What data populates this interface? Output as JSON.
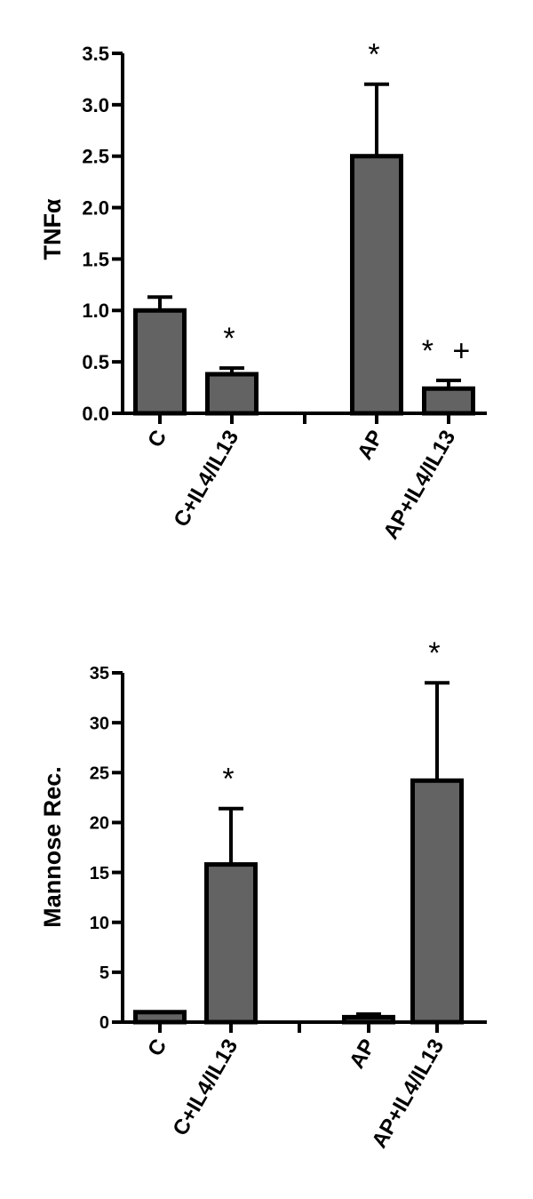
{
  "chart_data": [
    {
      "type": "bar",
      "categories": [
        "C",
        "C+IL4/IL13",
        "AP",
        "AP+IL4/IL13"
      ],
      "values": [
        1.0,
        0.38,
        2.5,
        0.24
      ],
      "errors": [
        0.13,
        0.06,
        0.7,
        0.08
      ],
      "annotations": [
        "",
        "*",
        "*",
        "* +"
      ],
      "ylabel": "TNFα",
      "ylim": [
        0,
        3.5
      ],
      "ytick_labels": [
        "0.0",
        "0.5",
        "1.0",
        "1.5",
        "2.0",
        "2.5",
        "3.0",
        "3.5"
      ],
      "bar_color": "#636363",
      "grid": false
    },
    {
      "type": "bar",
      "categories": [
        "C",
        "C+IL4/IL13",
        "AP",
        "AP+IL4/IL13"
      ],
      "values": [
        1.0,
        15.8,
        0.5,
        24.2
      ],
      "errors": [
        0.0,
        5.6,
        0.3,
        9.8
      ],
      "annotations": [
        "",
        "*",
        "",
        "*"
      ],
      "ylabel": "Mannose Rec.",
      "ylim": [
        0,
        35
      ],
      "ytick_labels": [
        "0",
        "5",
        "10",
        "15",
        "20",
        "25",
        "30",
        "35"
      ],
      "bar_color": "#636363",
      "grid": false
    }
  ]
}
